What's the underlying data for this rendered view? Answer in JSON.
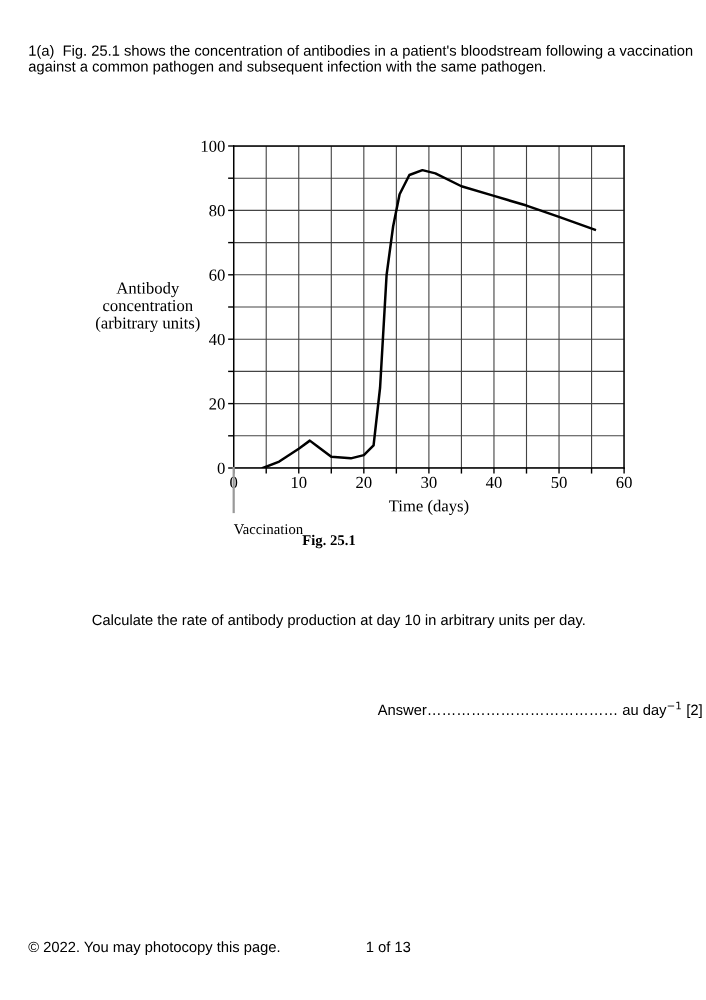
{
  "chart_data": {
    "type": "line",
    "title": "1(a)  Fig. 25.1 shows the concentration of antibodies in a patient's bloodstream following a vaccination against a common pathogen and subsequent infection with the same pathogen.",
    "xlabel": "Time (days)",
    "ylabel": "Antibody\nconcentration\n(arbitrary units)",
    "x": [
      4.5,
      7,
      10,
      11.7,
      13,
      15,
      18,
      20,
      21.5,
      22.5,
      23.5,
      24.5,
      25.5,
      27,
      29,
      31,
      35,
      40,
      45,
      50,
      55.5
    ],
    "series": [
      {
        "color": "#000000",
        "values": [
          0,
          2,
          6,
          8.5,
          6.5,
          3.5,
          3,
          4,
          7,
          25,
          60,
          75,
          85,
          91,
          92.5,
          91.5,
          87.5,
          84.5,
          81.5,
          78,
          74
        ]
      }
    ],
    "xlim": [
      0,
      60
    ],
    "ylim": [
      0,
      100
    ],
    "xticks": [
      0,
      {
        "value": 5,
        "label": null
      },
      10,
      {
        "value": 15,
        "label": null
      },
      20,
      {
        "value": 25,
        "label": null
      },
      30,
      {
        "value": 35,
        "label": null
      },
      40,
      {
        "value": 45,
        "label": null
      },
      50,
      {
        "value": 55,
        "label": null
      },
      60
    ],
    "yticks": [
      0,
      {
        "value": 10,
        "label": null
      },
      20,
      {
        "value": 30,
        "label": null
      },
      40,
      {
        "value": 50,
        "label": null
      },
      60,
      {
        "value": 70,
        "label": null
      },
      80,
      {
        "value": 90,
        "label": null
      },
      100
    ],
    "grid": true,
    "marker": "none",
    "line_style": "solid",
    "annotations": [
      "Vaccination",
      "Fig. 25.1",
      "Calculate the rate of antibody production at day 10 in arbitrary units per day.",
      "Answer………………………………… au day$^{−1}$ [2]",
      "© 2022. You may photocopy this page.",
      "1 of 13"
    ]
  }
}
